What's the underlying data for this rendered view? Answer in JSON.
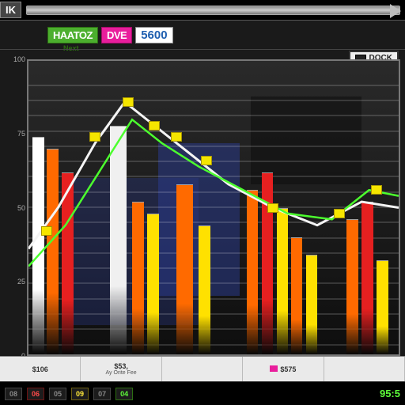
{
  "topbar": {
    "left_label": "IK"
  },
  "badges": {
    "green_label": "HAATOZ",
    "pink_label": "DVE",
    "number": "5600",
    "sub_label": "Next"
  },
  "legend": {
    "label": "DOCK"
  },
  "chart": {
    "type": "bar+line",
    "background_color": "#1a1a1a",
    "frame_border_color": "#777",
    "ylim": [
      0,
      100
    ],
    "yticks": [
      0,
      25,
      50,
      75,
      100
    ],
    "bars": [
      {
        "x_pct": 1,
        "width_pct": 3.2,
        "height_pct": 74,
        "color": "#ffffff"
      },
      {
        "x_pct": 5,
        "width_pct": 3.2,
        "height_pct": 70,
        "color": "#ff6a00"
      },
      {
        "x_pct": 9,
        "width_pct": 3.2,
        "height_pct": 62,
        "color": "#e62020"
      },
      {
        "x_pct": 22,
        "width_pct": 4.5,
        "height_pct": 78,
        "color": "#f0f0f0"
      },
      {
        "x_pct": 28,
        "width_pct": 3.2,
        "height_pct": 52,
        "color": "#ff6a00"
      },
      {
        "x_pct": 32,
        "width_pct": 3.2,
        "height_pct": 48,
        "color": "#ffe100"
      },
      {
        "x_pct": 40,
        "width_pct": 4.5,
        "height_pct": 58,
        "color": "#ff6a00"
      },
      {
        "x_pct": 46,
        "width_pct": 3.2,
        "height_pct": 44,
        "color": "#ffe100"
      },
      {
        "x_pct": 59,
        "width_pct": 3.0,
        "height_pct": 56,
        "color": "#ff6a00"
      },
      {
        "x_pct": 63,
        "width_pct": 3.0,
        "height_pct": 62,
        "color": "#e62020"
      },
      {
        "x_pct": 67,
        "width_pct": 3.0,
        "height_pct": 50,
        "color": "#ffe100"
      },
      {
        "x_pct": 71,
        "width_pct": 3.0,
        "height_pct": 40,
        "color": "#ff6a00"
      },
      {
        "x_pct": 75,
        "width_pct": 3.0,
        "height_pct": 34,
        "color": "#ffe100"
      },
      {
        "x_pct": 86,
        "width_pct": 3.2,
        "height_pct": 46,
        "color": "#ff6a00"
      },
      {
        "x_pct": 90,
        "width_pct": 3.2,
        "height_pct": 52,
        "color": "#e62020"
      },
      {
        "x_pct": 94,
        "width_pct": 3.2,
        "height_pct": 32,
        "color": "#ffe100"
      }
    ],
    "line_white": {
      "color": "#f4f4f4",
      "width": 3,
      "points": [
        [
          0,
          64
        ],
        [
          8,
          50
        ],
        [
          18,
          28
        ],
        [
          26,
          14
        ],
        [
          34,
          22
        ],
        [
          44,
          32
        ],
        [
          54,
          42
        ],
        [
          66,
          50
        ],
        [
          78,
          56
        ],
        [
          90,
          48
        ],
        [
          100,
          50
        ]
      ]
    },
    "line_green": {
      "color": "#4cff2e",
      "width": 2.5,
      "points": [
        [
          0,
          70
        ],
        [
          10,
          56
        ],
        [
          22,
          32
        ],
        [
          28,
          20
        ],
        [
          36,
          28
        ],
        [
          46,
          36
        ],
        [
          58,
          44
        ],
        [
          70,
          52
        ],
        [
          82,
          54
        ],
        [
          92,
          44
        ],
        [
          100,
          46
        ]
      ]
    },
    "markers": {
      "color": "#f6e600",
      "points": [
        [
          5,
          58
        ],
        [
          18,
          26
        ],
        [
          27,
          14
        ],
        [
          34,
          22
        ],
        [
          40,
          26
        ],
        [
          48,
          34
        ],
        [
          66,
          50
        ],
        [
          84,
          52
        ],
        [
          94,
          44
        ]
      ]
    },
    "glitch_blocks": [
      {
        "left_pct": 35,
        "top_pct": 28,
        "w_pct": 22,
        "h_pct": 52,
        "color": "#2a3a8a",
        "opacity": 0.55
      },
      {
        "left_pct": 12,
        "top_pct": 40,
        "w_pct": 34,
        "h_pct": 50,
        "color": "#2a3a8a",
        "opacity": 0.35
      },
      {
        "left_pct": 60,
        "top_pct": 12,
        "w_pct": 30,
        "h_pct": 30,
        "color": "#111111",
        "opacity": 0.65
      }
    ]
  },
  "x_axis": {
    "labels": [
      {
        "main": "$106",
        "sub": ""
      },
      {
        "main": "$53,",
        "sub": "Ay Orite Fee"
      },
      {
        "main": "",
        "sub": ""
      },
      {
        "main": "$575",
        "sub": ""
      },
      {
        "main": "",
        "sub": ""
      }
    ],
    "legend_swatch_color": "#e91e9c"
  },
  "status": {
    "chips": [
      {
        "text": "08",
        "variant": ""
      },
      {
        "text": "06",
        "variant": "red"
      },
      {
        "text": "05",
        "variant": ""
      },
      {
        "text": "09",
        "variant": "yellow"
      },
      {
        "text": "07",
        "variant": ""
      },
      {
        "text": "04",
        "variant": "green"
      }
    ],
    "right_value": "95:5"
  }
}
